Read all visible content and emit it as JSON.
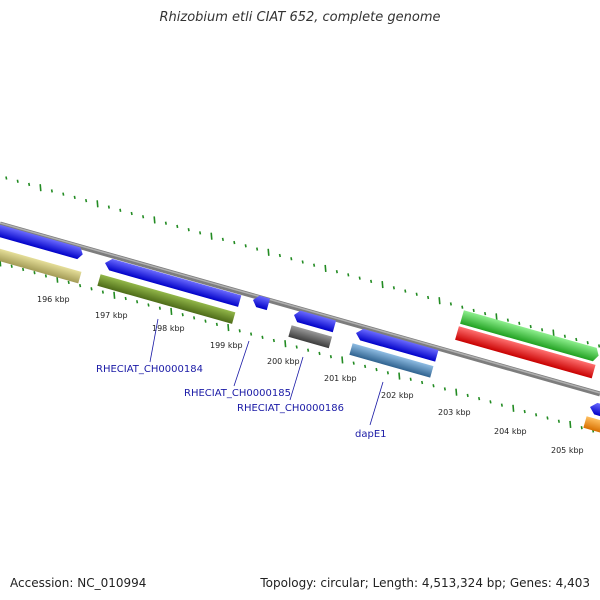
{
  "title": "Rhizobium etli CIAT 652, complete genome",
  "footer": {
    "accession": "Accession: NC_010994",
    "summary": "Topology: circular; Length: 4,513,324 bp; Genes: 4,403"
  },
  "ticks": [
    "196 kbp",
    "197 kbp",
    "198 kbp",
    "199 kbp",
    "200 kbp",
    "201 kbp",
    "202 kbp",
    "203 kbp",
    "204 kbp",
    "205 kbp"
  ],
  "gene_labels": [
    "RHECIAT_CH0000184",
    "RHECIAT_CH0000185",
    "RHECIAT_CH0000186",
    "dapE1"
  ],
  "colors": {
    "backbone": "#8a8a8a",
    "blue": "#1010e6",
    "khaki": "#bdb76b",
    "olive": "#6b8e23",
    "grey": "#555555",
    "steelblue": "#4682b4",
    "green": "#32cd32",
    "red": "#ee1111",
    "orange": "#ff8c00",
    "tick": "#228b22"
  }
}
